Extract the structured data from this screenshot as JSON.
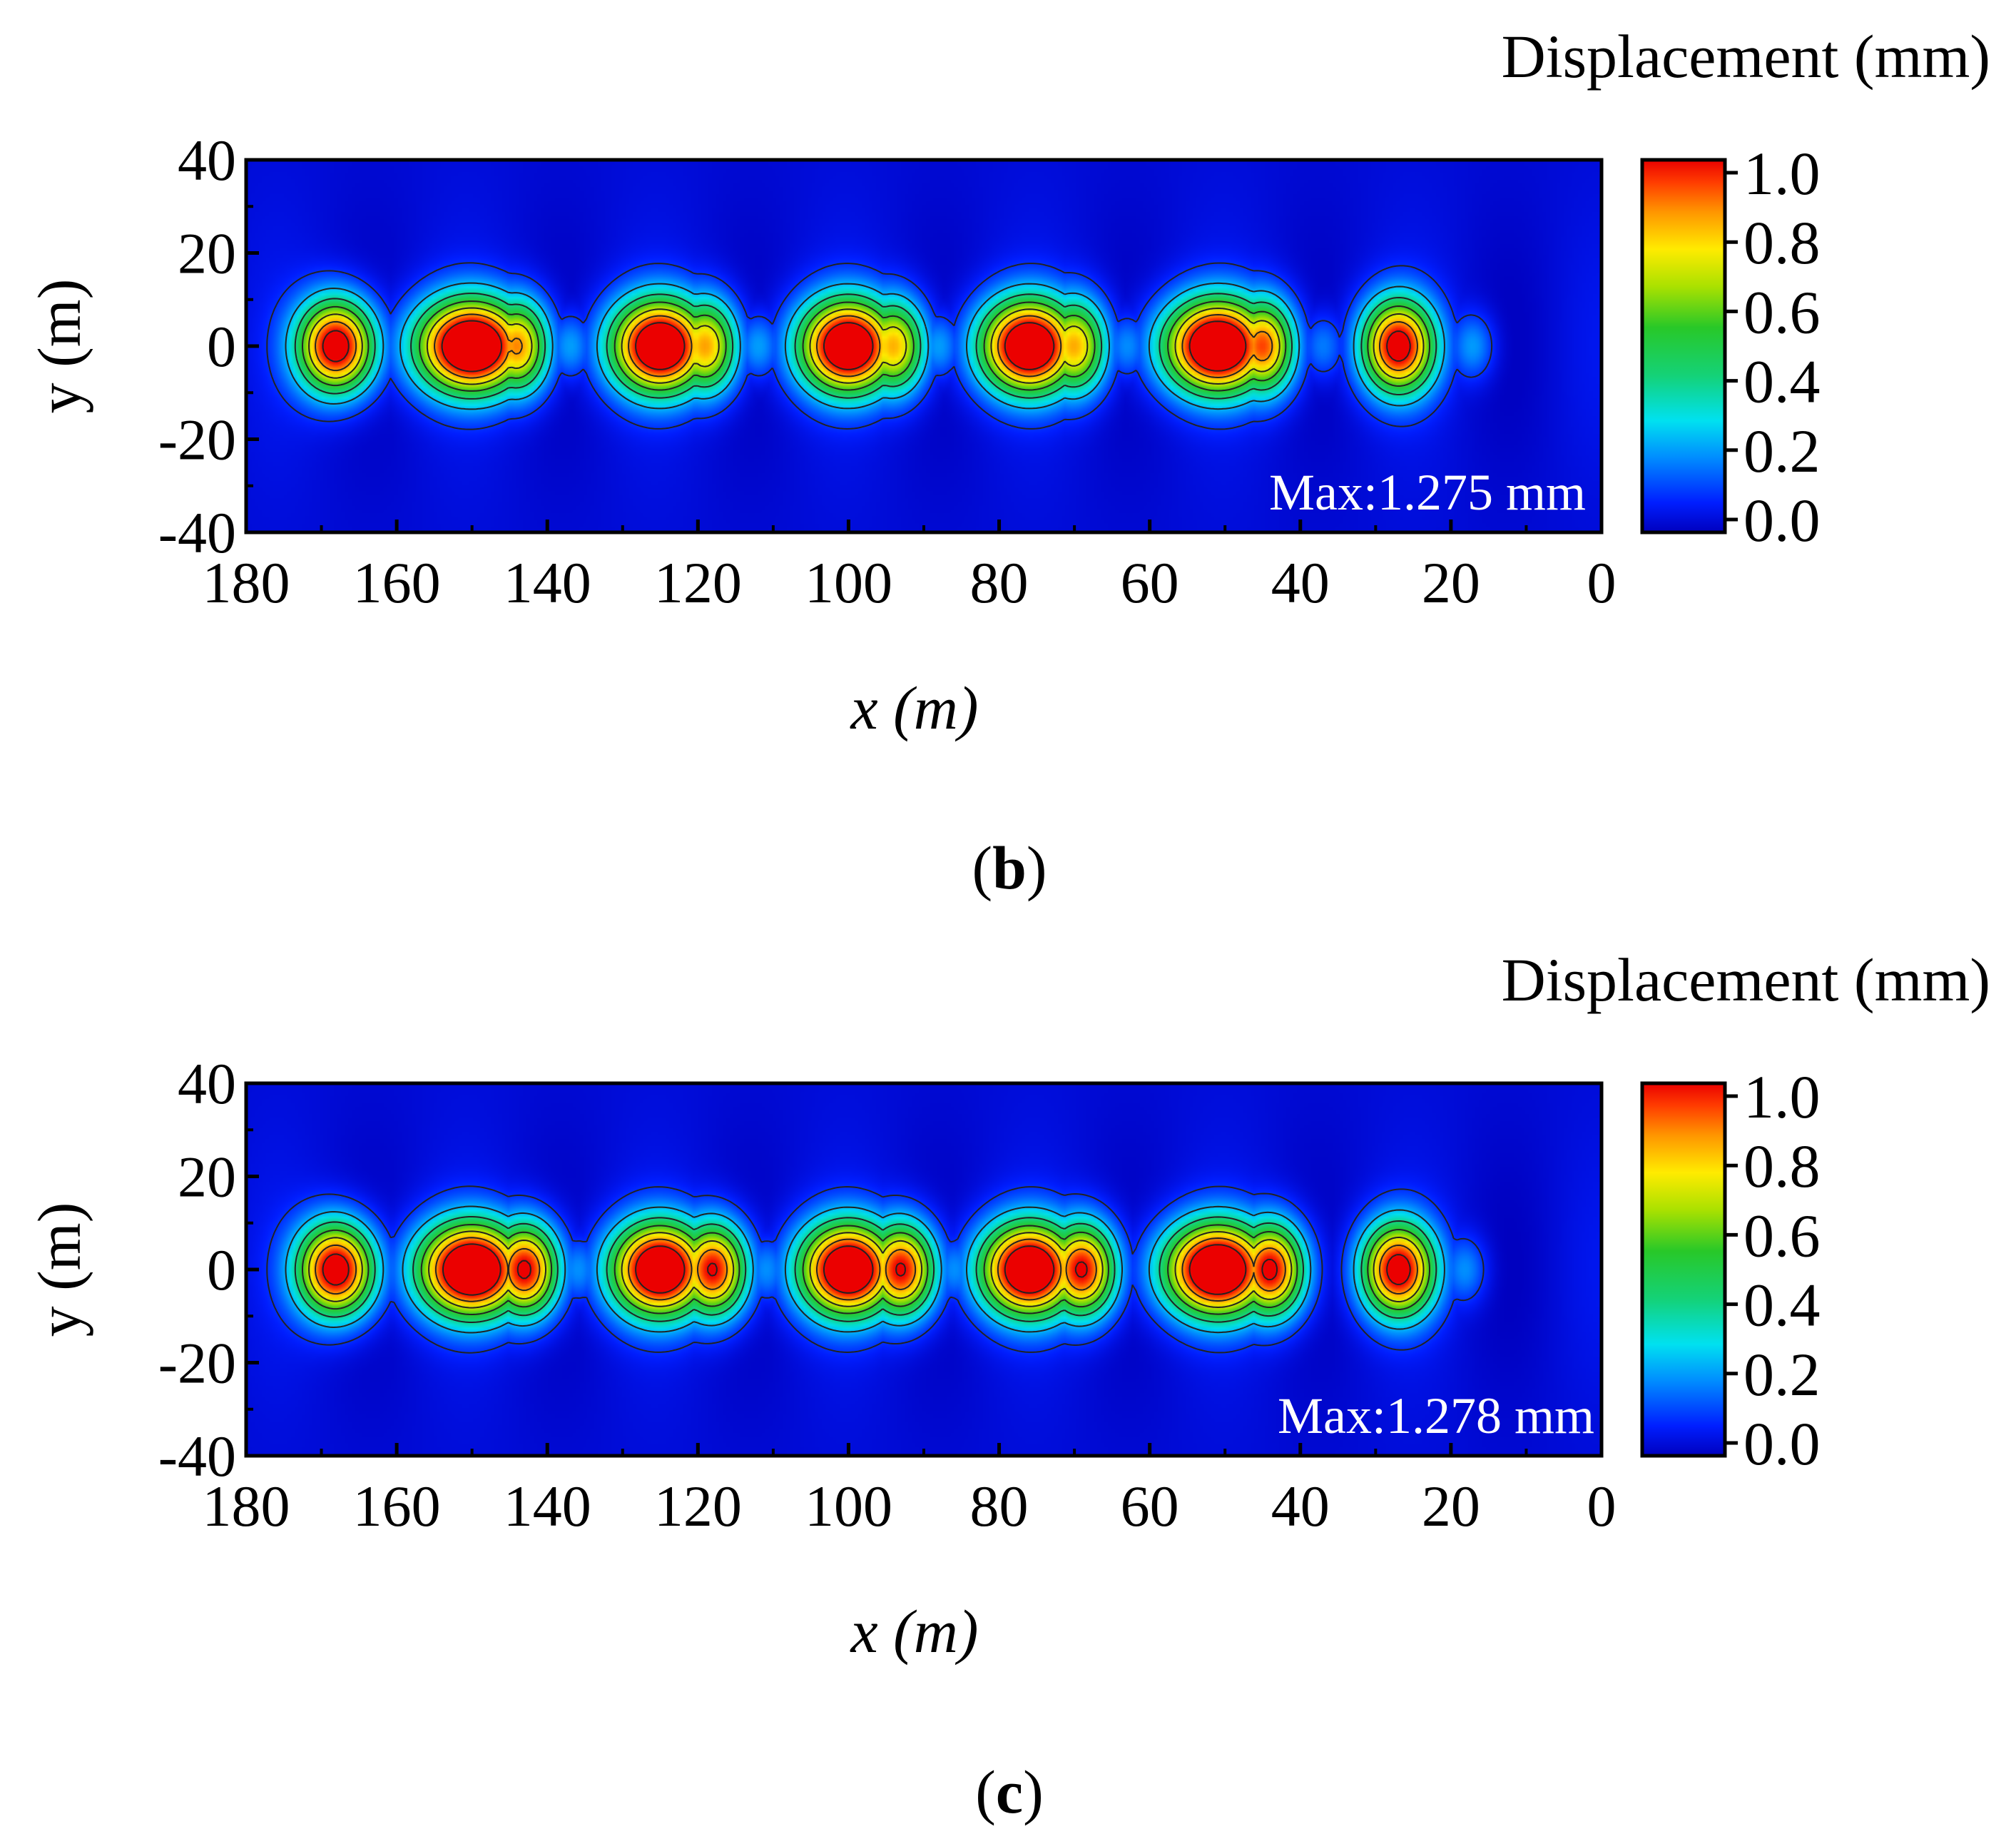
{
  "chart_data": [
    {
      "type": "heatmap",
      "panel_label": "b",
      "xlabel": "x (m)",
      "ylabel": "y (m)",
      "xlim": [
        180,
        0
      ],
      "ylim": [
        -40,
        40
      ],
      "x_ticks": [
        "180",
        "160",
        "140",
        "120",
        "100",
        "80",
        "60",
        "40",
        "20",
        "0"
      ],
      "y_ticks": [
        "40",
        "20",
        "0",
        "-20",
        "-40"
      ],
      "colorbar": {
        "title": "Displacement (mm)",
        "range": [
          0.0,
          1.0
        ],
        "ticks": [
          "0.0",
          "0.2",
          "0.4",
          "0.6",
          "0.8",
          "1.0"
        ]
      },
      "annotation": "Max:1.275 mm",
      "max_displacement_mm": 1.275,
      "contour_levels": [
        0.1,
        0.25,
        0.4,
        0.55,
        0.7,
        0.85,
        1.0
      ],
      "peaks": [
        {
          "x": 168,
          "amp": 1.1,
          "width": 3.6
        },
        {
          "x": 150,
          "amp": 1.275,
          "width": 5.2
        },
        {
          "x": 144,
          "amp": 0.85,
          "width": 3.0
        },
        {
          "x": 125,
          "amp": 1.22,
          "width": 4.6
        },
        {
          "x": 119,
          "amp": 0.82,
          "width": 3.0
        },
        {
          "x": 100,
          "amp": 1.22,
          "width": 4.6
        },
        {
          "x": 94,
          "amp": 0.8,
          "width": 3.0
        },
        {
          "x": 76,
          "amp": 1.22,
          "width": 4.6
        },
        {
          "x": 70,
          "amp": 0.8,
          "width": 3.0
        },
        {
          "x": 51,
          "amp": 1.26,
          "width": 5.0
        },
        {
          "x": 45,
          "amp": 0.9,
          "width": 3.0
        },
        {
          "x": 27,
          "amp": 1.05,
          "width": 3.4
        }
      ],
      "secondary_bumps": [
        {
          "x": 137,
          "amp": 0.22
        },
        {
          "x": 112,
          "amp": 0.22
        },
        {
          "x": 88,
          "amp": 0.22
        },
        {
          "x": 63,
          "amp": 0.2
        },
        {
          "x": 37,
          "amp": 0.18
        },
        {
          "x": 17,
          "amp": 0.2
        }
      ]
    },
    {
      "type": "heatmap",
      "panel_label": "c",
      "xlabel": "x (m)",
      "ylabel": "y (m)",
      "xlim": [
        180,
        0
      ],
      "ylim": [
        -40,
        40
      ],
      "x_ticks": [
        "180",
        "160",
        "140",
        "120",
        "100",
        "80",
        "60",
        "40",
        "20",
        "0"
      ],
      "y_ticks": [
        "40",
        "20",
        "0",
        "-20",
        "-40"
      ],
      "colorbar": {
        "title": "Displacement (mm)",
        "range": [
          0.0,
          1.0
        ],
        "ticks": [
          "0.0",
          "0.2",
          "0.4",
          "0.6",
          "0.8",
          "1.0"
        ]
      },
      "annotation": "Max:1.278 mm",
      "max_displacement_mm": 1.278,
      "contour_levels": [
        0.1,
        0.25,
        0.4,
        0.55,
        0.7,
        0.85,
        1.0
      ],
      "peaks": [
        {
          "x": 168,
          "amp": 1.1,
          "width": 3.6
        },
        {
          "x": 150,
          "amp": 1.278,
          "width": 5.0
        },
        {
          "x": 143,
          "amp": 1.02,
          "width": 3.2
        },
        {
          "x": 125,
          "amp": 1.22,
          "width": 4.6
        },
        {
          "x": 118,
          "amp": 1.0,
          "width": 3.2
        },
        {
          "x": 100,
          "amp": 1.22,
          "width": 4.6
        },
        {
          "x": 93,
          "amp": 1.0,
          "width": 3.2
        },
        {
          "x": 76,
          "amp": 1.22,
          "width": 4.6
        },
        {
          "x": 69,
          "amp": 1.0,
          "width": 3.2
        },
        {
          "x": 51,
          "amp": 1.26,
          "width": 5.0
        },
        {
          "x": 44,
          "amp": 1.02,
          "width": 3.2
        },
        {
          "x": 27,
          "amp": 1.05,
          "width": 3.4
        }
      ],
      "secondary_bumps": [
        {
          "x": 136,
          "amp": 0.2
        },
        {
          "x": 111,
          "amp": 0.2
        },
        {
          "x": 86,
          "amp": 0.2
        },
        {
          "x": 18,
          "amp": 0.18
        }
      ]
    }
  ]
}
